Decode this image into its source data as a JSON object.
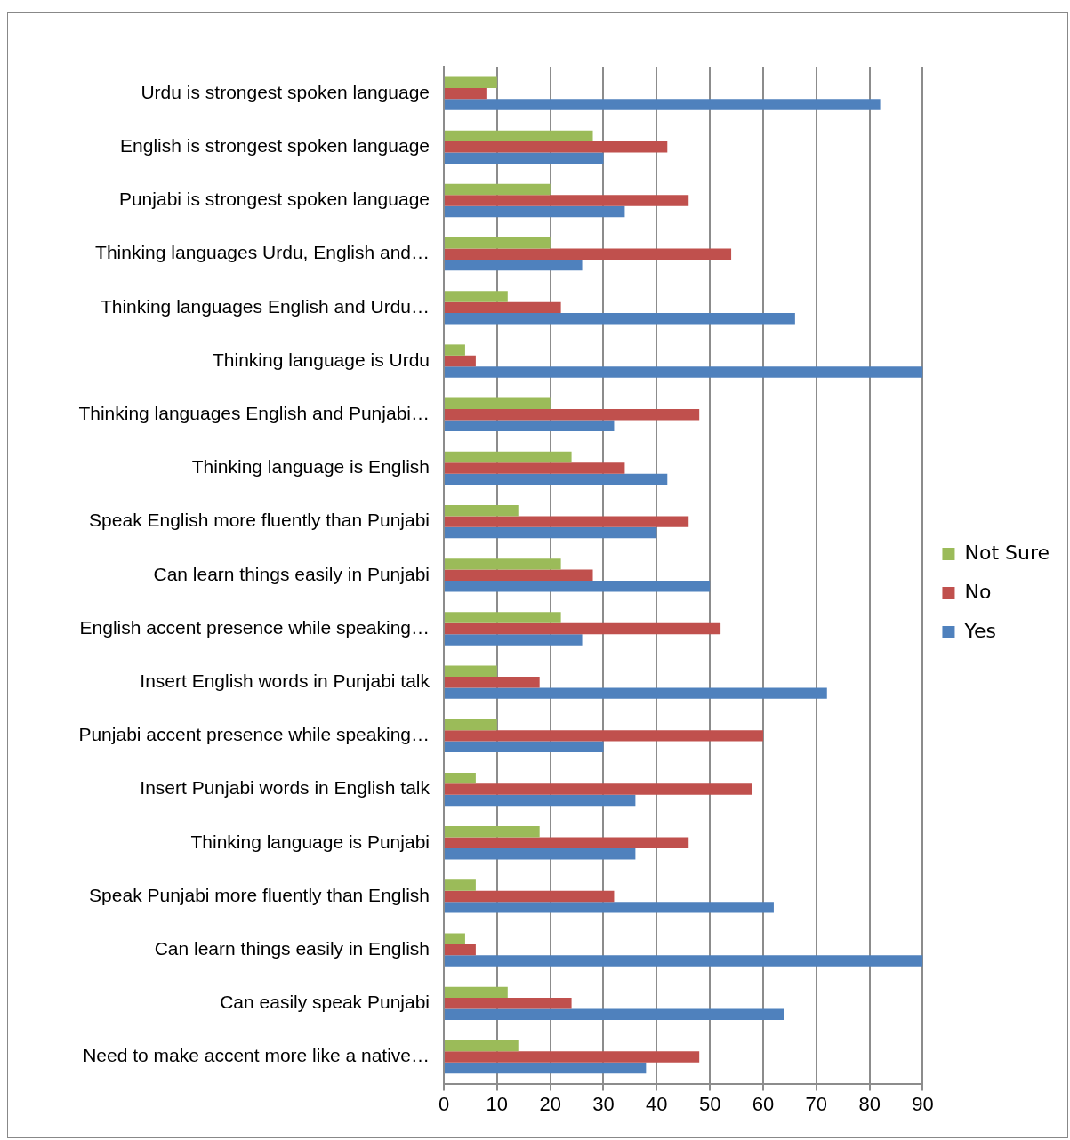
{
  "chart_data": {
    "type": "bar",
    "orientation": "horizontal",
    "categories": [
      "Urdu is strongest spoken language",
      "English is strongest spoken language",
      "Punjabi is strongest spoken language",
      "Thinking languages Urdu, English and…",
      "Thinking languages English and Urdu…",
      "Thinking language is Urdu",
      "Thinking languages English and Punjabi…",
      "Thinking language is English",
      "Speak English more fluently than Punjabi",
      "Can learn things easily in Punjabi",
      "English accent presence while speaking…",
      "Insert English words in Punjabi talk",
      "Punjabi accent presence while speaking…",
      "Insert Punjabi words in English talk",
      "Thinking language is Punjabi",
      "Speak Punjabi more fluently than English",
      "Can learn things easily in English",
      "Can easily speak Punjabi",
      "Need to make accent more like a native…"
    ],
    "series": [
      {
        "name": "Not Sure",
        "color": "#9bbb59",
        "values": [
          10,
          28,
          20,
          20,
          12,
          4,
          20,
          24,
          14,
          22,
          22,
          10,
          10,
          6,
          18,
          6,
          4,
          12,
          14
        ]
      },
      {
        "name": "No",
        "color": "#c0504d",
        "values": [
          8,
          42,
          46,
          54,
          22,
          6,
          48,
          34,
          46,
          28,
          52,
          18,
          60,
          58,
          46,
          32,
          6,
          24,
          48
        ]
      },
      {
        "name": "Yes",
        "color": "#4f81bd",
        "values": [
          82,
          30,
          34,
          26,
          66,
          90,
          32,
          42,
          40,
          50,
          26,
          72,
          30,
          36,
          36,
          62,
          90,
          64,
          38
        ]
      }
    ],
    "xlim": [
      0,
      90
    ],
    "xticks": [
      0,
      10,
      20,
      30,
      40,
      50,
      60,
      70,
      80,
      90
    ],
    "grid": "x",
    "legend": "right"
  }
}
